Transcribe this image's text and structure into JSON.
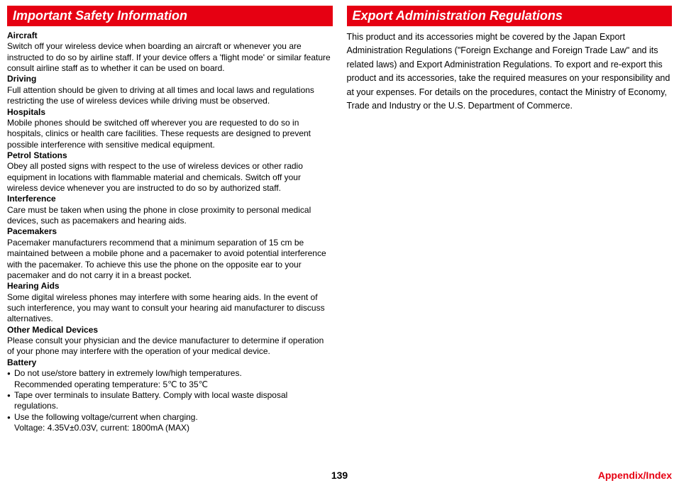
{
  "left": {
    "header": "Important Safety Information",
    "sections": [
      {
        "title": "Aircraft",
        "text": "Switch off your wireless device when boarding an aircraft or whenever you are instructed to do so by airline staff. If your device offers a 'flight mode' or similar feature consult airline staff as to whether it can be used on board."
      },
      {
        "title": "Driving",
        "text": "Full attention should be given to driving at all times and local laws and regulations restricting the use of wireless devices while driving must be observed."
      },
      {
        "title": "Hospitals",
        "text": "Mobile phones should be switched off wherever you are requested to do so in hospitals, clinics or health care facilities. These requests are designed to prevent possible interference with sensitive medical equipment."
      },
      {
        "title": "Petrol Stations",
        "text": "Obey all posted signs with respect to the use of wireless devices or other radio equipment in locations with flammable material and chemicals. Switch off your wireless device whenever you are instructed to do so by authorized staff."
      },
      {
        "title": "Interference",
        "text": "Care must be taken when using the phone in close proximity to personal medical devices, such as pacemakers and hearing aids."
      },
      {
        "title": "Pacemakers",
        "text": "Pacemaker manufacturers recommend that a minimum separation of 15 cm be maintained between a mobile phone and a pacemaker to avoid potential interference with the pacemaker. To achieve this use the phone on the opposite ear to your pacemaker and do not carry it in a breast pocket."
      },
      {
        "title": "Hearing Aids",
        "text": "Some digital wireless phones may interfere with some hearing aids. In the event of such interference, you may want to consult your hearing aid manufacturer to discuss alternatives."
      },
      {
        "title": "Other Medical Devices",
        "text": "Please consult your physician and the device manufacturer to determine if operation of your phone may interfere with the operation of your medical device."
      }
    ],
    "battery": {
      "title": "Battery",
      "bullets": [
        {
          "line1": "Do not use/store battery in extremely low/high temperatures.",
          "line2": "Recommended operating temperature: 5℃ to 35℃"
        },
        {
          "line1": "Tape over terminals to insulate Battery. Comply with local waste disposal regulations.",
          "line2": ""
        },
        {
          "line1": "Use the following voltage/current when charging.",
          "line2": "Voltage: 4.35V±0.03V, current: 1800mA (MAX)"
        }
      ]
    }
  },
  "right": {
    "header": "Export Administration Regulations",
    "text": "This product and its accessories might be covered by the Japan Export Administration Regulations (\"Foreign Exchange and Foreign Trade Law\" and its related laws) and Export Administration Regulations. To export and re-export this product and its accessories, take the required measures on your responsibility and at your expenses. For details on the procedures, contact the Ministry of Economy, Trade and Industry or the U.S. Department of Commerce."
  },
  "footer": {
    "page": "139",
    "right": "Appendix/Index"
  },
  "style": {
    "accent": "#e60012",
    "right_lineheight": "1.55",
    "right_fontsize": "12.5px"
  }
}
